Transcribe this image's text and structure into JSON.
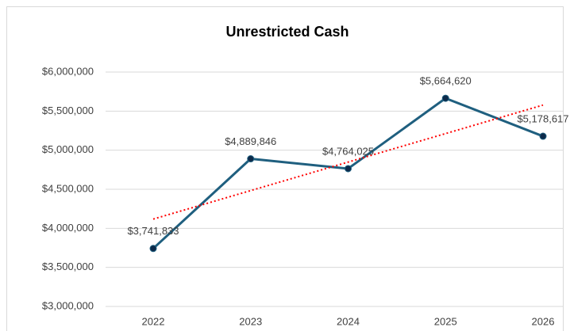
{
  "chart_data": {
    "type": "line",
    "title": "Unrestricted Cash",
    "categories": [
      "2022",
      "2023",
      "2024",
      "2025",
      "2026"
    ],
    "values": [
      3741833,
      4889846,
      4764025,
      5664620,
      5178617
    ],
    "value_labels": [
      "$3,741,833",
      "$4,889,846",
      "$4,764,025",
      "$5,664,620",
      "$5,178,617"
    ],
    "color": "#1f5f7f",
    "marker_color": "#0d2a4a",
    "trendline": {
      "type": "linear",
      "color": "#ff0000",
      "style": "dotted"
    },
    "ylim": [
      3000000,
      6000000
    ],
    "yticks": [
      {
        "value": 3000000,
        "label": "$3,000,000"
      },
      {
        "value": 3500000,
        "label": "$3,500,000"
      },
      {
        "value": 4000000,
        "label": "$4,000,000"
      },
      {
        "value": 4500000,
        "label": "$4,500,000"
      },
      {
        "value": 5000000,
        "label": "$5,000,000"
      },
      {
        "value": 5500000,
        "label": "$5,500,000"
      },
      {
        "value": 6000000,
        "label": "$6,000,000"
      }
    ],
    "grid": true
  }
}
